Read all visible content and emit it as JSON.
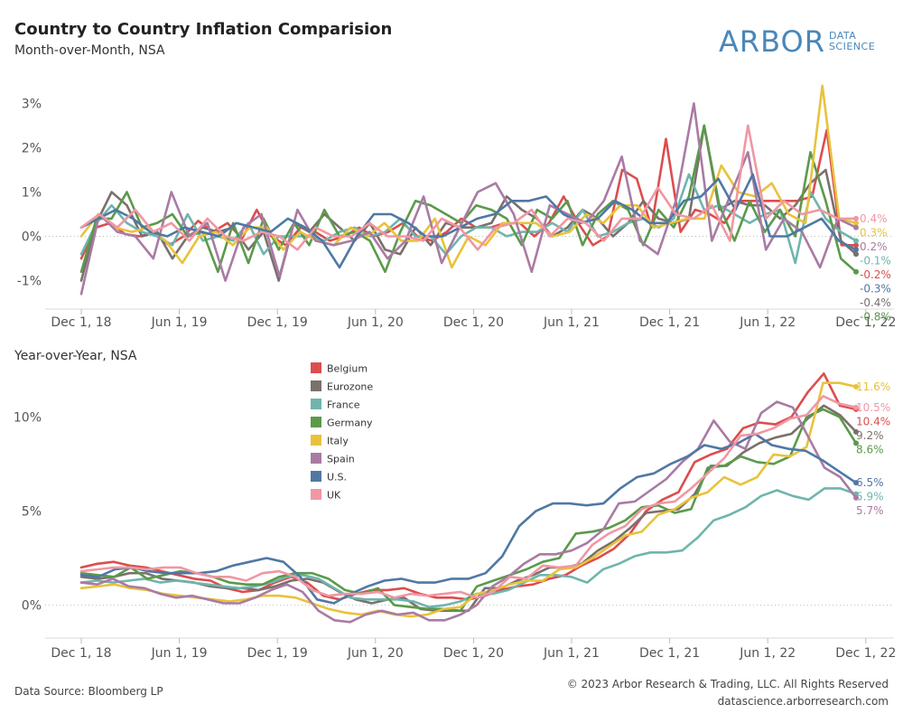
{
  "header": {
    "title": "Country to Country Inflation Comparision",
    "subtitle": "Month-over-Month, NSA"
  },
  "logo": {
    "main": "ARBOR",
    "line1": "DATA",
    "line2": "SCIENCE",
    "color": "#4a87b8"
  },
  "footer": {
    "source": "Data Source: Bloomberg LP",
    "copyright": "© 2023 Arbor Research & Trading, LLC. All Rights Reserved",
    "website": "datascience.arborresearch.com"
  },
  "chart_data": [
    {
      "type": "line",
      "title": "",
      "subtitle": "Month-over-Month, NSA",
      "x_ticks": [
        "Dec 1, 18",
        "Jun 1, 19",
        "Dec 1, 19",
        "Jun 1, 20",
        "Dec 1, 20",
        "Jun 1, 21",
        "Dec 1, 21",
        "Jun 1, 22",
        "Dec 1, 22"
      ],
      "x_start": "2018-12",
      "y_ticks": [
        "-1%",
        "0%",
        "1%",
        "2%",
        "3%"
      ],
      "y_tick_values": [
        -1,
        0,
        1,
        2,
        3
      ],
      "ylim": [
        -1.6,
        3.6
      ],
      "gridlines": false,
      "zero_line": "dotted",
      "series": [
        {
          "name": "Belgium",
          "color": "#dc4d4e",
          "end_label": "-0.2%",
          "values": [
            -0.5,
            0.2,
            0.3,
            0.05,
            0.0,
            0.1,
            -0.2,
            0.0,
            0.35,
            0.1,
            0.3,
            -0.05,
            0.6,
            0.0,
            -0.2,
            0.2,
            0.1,
            -0.1,
            0.0,
            0.2,
            0.0,
            0.1,
            0.3,
            0.0,
            -0.1,
            0.1,
            0.4,
            0.2,
            0.2,
            0.3,
            0.3,
            0.0,
            0.3,
            0.9,
            0.3,
            -0.2,
            0.0,
            1.5,
            1.3,
            0.2,
            2.2,
            0.1,
            0.6,
            0.5,
            0.3,
            0.8,
            0.8,
            0.8,
            0.8,
            0.8,
            0.9,
            2.4,
            -0.2,
            -0.2
          ]
        },
        {
          "name": "Eurozone",
          "color": "#7a706c",
          "end_label": "-0.4%",
          "values": [
            -1.0,
            0.3,
            1.0,
            0.7,
            0.0,
            0.1,
            -0.5,
            0.0,
            0.2,
            0.1,
            0.2,
            -0.3,
            0.1,
            -1.0,
            0.3,
            0.1,
            0.5,
            0.2,
            -0.1,
            0.3,
            -0.3,
            -0.4,
            0.2,
            -0.2,
            0.3,
            0.2,
            0.2,
            0.3,
            0.9,
            0.6,
            0.4,
            0.0,
            0.2,
            0.6,
            0.4,
            0.0,
            0.3,
            0.8,
            0.4,
            0.3,
            0.4,
            2.5,
            0.6,
            0.8,
            0.7,
            0.7,
            0.4,
            0.7,
            1.2,
            1.5,
            -0.1,
            -0.4
          ]
        },
        {
          "name": "France",
          "color": "#6fb5ad",
          "end_label": "-0.1%",
          "values": [
            -0.4,
            0.3,
            0.7,
            0.3,
            0.1,
            0.0,
            -0.2,
            0.5,
            -0.1,
            0.0,
            -0.1,
            0.3,
            -0.4,
            0.0,
            0.0,
            0.0,
            -0.1,
            0.1,
            0.2,
            0.0,
            0.1,
            0.4,
            0.0,
            0.0,
            -0.4,
            0.0,
            0.2,
            0.2,
            0.0,
            0.1,
            0.1,
            0.3,
            0.1,
            0.6,
            0.0,
            0.1,
            0.3,
            0.4,
            0.2,
            0.4,
            1.4,
            0.6,
            0.7,
            0.5,
            0.3,
            0.5,
            0.6,
            -0.6,
            1.0,
            0.4,
            0.1,
            -0.1
          ]
        },
        {
          "name": "Germany",
          "color": "#5a9a4a",
          "end_label": "-0.8%",
          "values": [
            -0.8,
            0.4,
            0.4,
            1.0,
            0.2,
            0.3,
            0.5,
            0.0,
            0.1,
            -0.8,
            0.3,
            -0.6,
            0.4,
            -0.3,
            0.3,
            -0.2,
            0.6,
            0.0,
            0.1,
            -0.1,
            -0.8,
            0.1,
            0.8,
            0.7,
            0.5,
            0.3,
            0.7,
            0.6,
            0.4,
            -0.2,
            0.6,
            0.4,
            0.8,
            -0.2,
            0.5,
            0.8,
            0.6,
            -0.2,
            0.6,
            0.2,
            0.9,
            2.5,
            0.7,
            -0.1,
            0.8,
            0.1,
            0.6,
            0.0,
            1.9,
            0.8,
            -0.5,
            -0.8
          ]
        },
        {
          "name": "Italy",
          "color": "#e9c23c",
          "end_label": "0.3%",
          "values": [
            0.0,
            0.5,
            0.2,
            0.1,
            0.2,
            -0.1,
            -0.6,
            0.0,
            0.1,
            -0.2,
            0.2,
            0.2,
            -0.3,
            0.1,
            -0.1,
            -0.2,
            0.2,
            0.0,
            0.3,
            -0.1,
            -0.1,
            0.4,
            -0.7,
            0.0,
            -0.2,
            0.3,
            0.3,
            0.3,
            0.0,
            0.1,
            0.5,
            0.3,
            0.7,
            0.7,
            0.2,
            0.3,
            0.4,
            0.4,
            1.6,
            1.0,
            0.9,
            1.2,
            0.5,
            0.3,
            3.4,
            0.4,
            0.3
          ]
        },
        {
          "name": "Spain",
          "color": "#a97ba3",
          "end_label": "0.2%",
          "values": [
            -1.3,
            0.5,
            0.1,
            0.0,
            -0.5,
            1.0,
            0.0,
            0.3,
            -1.0,
            0.2,
            0.5,
            -0.9,
            0.6,
            -0.1,
            -0.2,
            -0.1,
            0.1,
            -0.5,
            -0.1,
            0.9,
            -0.6,
            0.2,
            1.0,
            1.2,
            0.5,
            -0.8,
            0.7,
            0.5,
            0.3,
            0.8,
            1.8,
            -0.1,
            -0.4,
            0.8,
            3.0,
            -0.1,
            0.9,
            1.9,
            -0.3,
            0.4,
            0.1,
            -0.7,
            0.4,
            0.2
          ]
        },
        {
          "name": "U.S.",
          "color": "#4f78a4",
          "end_label": "-0.3%",
          "values": [
            0.2,
            0.4,
            0.6,
            0.4,
            0.1,
            0.0,
            0.2,
            0.1,
            0.0,
            0.3,
            0.2,
            0.1,
            0.4,
            0.2,
            -0.1,
            -0.7,
            0.0,
            0.5,
            0.5,
            0.3,
            0.0,
            0.0,
            0.2,
            0.4,
            0.5,
            0.8,
            0.8,
            0.9,
            0.5,
            0.3,
            0.4,
            0.8,
            0.6,
            0.3,
            0.3,
            0.8,
            0.9,
            1.3,
            0.6,
            1.4,
            0.0,
            0.0,
            0.2,
            0.4,
            -0.1,
            -0.3
          ]
        },
        {
          "name": "UK",
          "color": "#f097a3",
          "end_label": "0.4%",
          "values": [
            0.2,
            0.5,
            0.2,
            0.6,
            0.1,
            0.3,
            -0.1,
            0.4,
            0.0,
            -0.1,
            0.1,
            0.0,
            -0.3,
            0.2,
            0.0,
            0.0,
            0.3,
            0.0,
            0.0,
            -0.1,
            0.4,
            0.2,
            -0.3,
            0.2,
            0.3,
            0.6,
            0.0,
            0.4,
            0.3,
            -0.1,
            0.4,
            0.4,
            1.1,
            0.5,
            0.4,
            0.7,
            -0.1,
            2.5,
            0.4,
            0.8,
            0.5,
            0.6,
            0.4,
            0.4
          ]
        }
      ]
    },
    {
      "type": "line",
      "title": "",
      "subtitle": "Year-over-Year, NSA",
      "x_ticks": [
        "Dec 1, 18",
        "Jun 1, 19",
        "Dec 1, 19",
        "Jun 1, 20",
        "Dec 1, 20",
        "Jun 1, 21",
        "Dec 1, 21",
        "Jun 1, 22",
        "Dec 1, 22"
      ],
      "x_start": "2018-12",
      "y_ticks": [
        "0%",
        "5%",
        "10%"
      ],
      "y_tick_values": [
        0,
        5,
        10
      ],
      "ylim": [
        -1.7,
        12.7
      ],
      "gridlines": false,
      "zero_line": "dotted",
      "legend": {
        "placement": "top-center",
        "entries": [
          "Belgium",
          "Eurozone",
          "France",
          "Germany",
          "Italy",
          "Spain",
          "U.S.",
          "UK"
        ]
      },
      "series": [
        {
          "name": "Belgium",
          "color": "#dc4d4e",
          "end_label": "10.4%",
          "values": [
            2.0,
            2.2,
            2.3,
            2.1,
            2.0,
            1.8,
            1.6,
            1.4,
            1.3,
            0.9,
            0.7,
            0.8,
            1.2,
            1.5,
            1.2,
            0.5,
            0.3,
            0.6,
            0.8,
            0.8,
            0.9,
            0.6,
            0.4,
            0.4,
            0.3,
            0.5,
            0.8,
            1.0,
            1.1,
            1.4,
            1.6,
            2.1,
            2.5,
            3.0,
            3.8,
            5.0,
            5.6,
            6.0,
            7.6,
            8.0,
            8.3,
            9.4,
            9.7,
            9.6,
            10.0,
            11.3,
            12.3,
            10.6,
            10.4
          ]
        },
        {
          "name": "Eurozone",
          "color": "#7a706c",
          "end_label": "9.2%",
          "values": [
            1.5,
            1.4,
            1.5,
            1.7,
            1.7,
            1.4,
            1.3,
            1.2,
            1.0,
            0.9,
            0.9,
            0.8,
            1.0,
            1.3,
            1.4,
            1.2,
            0.7,
            0.3,
            0.1,
            0.3,
            0.4,
            -0.2,
            -0.3,
            -0.3,
            -0.3,
            0.9,
            0.9,
            1.3,
            1.6,
            2.0,
            2.0,
            2.2,
            2.9,
            3.4,
            4.1,
            4.9,
            5.0,
            5.1,
            5.9,
            7.4,
            7.4,
            8.1,
            8.6,
            8.9,
            9.1,
            9.9,
            10.6,
            10.1,
            9.2
          ]
        },
        {
          "name": "France",
          "color": "#6fb5ad",
          "end_label": "5.9%",
          "values": [
            1.2,
            1.3,
            1.2,
            1.3,
            1.4,
            1.2,
            1.3,
            1.2,
            1.1,
            1.0,
            0.9,
            1.0,
            1.2,
            1.5,
            1.6,
            1.4,
            0.9,
            0.4,
            0.3,
            0.3,
            0.3,
            0.2,
            -0.1,
            0.0,
            0.2,
            0.6,
            0.6,
            0.8,
            1.2,
            1.6,
            1.6,
            1.5,
            1.2,
            1.9,
            2.2,
            2.6,
            2.8,
            2.8,
            2.9,
            3.6,
            4.5,
            4.8,
            5.2,
            5.8,
            6.1,
            5.8,
            5.6,
            6.2,
            6.2,
            5.9
          ]
        },
        {
          "name": "Germany",
          "color": "#5a9a4a",
          "end_label": "8.6%",
          "values": [
            1.7,
            1.6,
            1.5,
            2.0,
            1.4,
            1.6,
            1.8,
            1.7,
            1.5,
            1.2,
            1.1,
            1.1,
            1.5,
            1.7,
            1.7,
            1.4,
            0.8,
            0.6,
            0.9,
            0.0,
            -0.1,
            -0.2,
            -0.2,
            -0.3,
            1.0,
            1.3,
            1.6,
            1.9,
            2.3,
            2.5,
            3.8,
            3.9,
            4.1,
            4.5,
            5.2,
            5.3,
            4.9,
            5.1,
            7.3,
            7.4,
            7.9,
            7.6,
            7.5,
            7.9,
            10.0,
            10.4,
            10.0,
            8.6
          ]
        },
        {
          "name": "Italy",
          "color": "#e9c23c",
          "end_label": "11.6%",
          "values": [
            0.9,
            1.0,
            1.1,
            0.9,
            0.8,
            0.6,
            0.5,
            0.4,
            0.3,
            0.2,
            0.3,
            0.5,
            0.5,
            0.4,
            0.1,
            -0.2,
            -0.4,
            -0.5,
            -0.3,
            -0.5,
            -0.6,
            -0.5,
            -0.2,
            -0.1,
            0.6,
            0.8,
            1.1,
            1.3,
            1.3,
            1.9,
            2.0,
            2.5,
            3.1,
            3.7,
            3.9,
            4.8,
            5.1,
            5.7,
            6.0,
            6.8,
            6.4,
            6.8,
            8.0,
            7.9,
            8.4,
            11.8,
            11.8,
            11.6
          ]
        },
        {
          "name": "Spain",
          "color": "#a97ba3",
          "end_label": "5.7%",
          "values": [
            1.2,
            1.1,
            1.4,
            1.0,
            0.9,
            0.6,
            0.4,
            0.5,
            0.3,
            0.1,
            0.1,
            0.4,
            0.8,
            1.1,
            0.7,
            -0.3,
            -0.8,
            -0.9,
            -0.5,
            -0.3,
            -0.5,
            -0.4,
            -0.8,
            -0.8,
            -0.5,
            0.0,
            1.0,
            1.5,
            2.2,
            2.7,
            2.7,
            2.9,
            3.3,
            4.0,
            5.4,
            5.5,
            6.1,
            6.7,
            7.6,
            8.3,
            9.8,
            8.7,
            8.3,
            10.2,
            10.8,
            10.5,
            8.9,
            7.3,
            6.8,
            5.7
          ]
        },
        {
          "name": "U.S.",
          "color": "#4f78a4",
          "end_label": "6.5%",
          "values": [
            1.6,
            1.5,
            1.9,
            2.0,
            1.8,
            1.7,
            1.7,
            1.7,
            1.8,
            2.1,
            2.3,
            2.5,
            2.3,
            1.5,
            0.3,
            0.1,
            0.6,
            1.0,
            1.3,
            1.4,
            1.2,
            1.2,
            1.4,
            1.4,
            1.7,
            2.6,
            4.2,
            5.0,
            5.4,
            5.4,
            5.3,
            5.4,
            6.2,
            6.8,
            7.0,
            7.5,
            7.9,
            8.5,
            8.3,
            8.6,
            9.1,
            8.5,
            8.3,
            8.2,
            7.7,
            7.1,
            6.5
          ]
        },
        {
          "name": "UK",
          "color": "#f097a3",
          "end_label": "10.5%",
          "values": [
            1.8,
            1.9,
            2.0,
            2.0,
            1.9,
            2.0,
            2.0,
            1.7,
            1.5,
            1.5,
            1.3,
            1.7,
            1.8,
            1.5,
            0.8,
            0.5,
            0.6,
            0.6,
            0.7,
            0.4,
            0.6,
            0.5,
            0.6,
            0.7,
            0.4,
            0.7,
            1.5,
            1.4,
            2.1,
            2.0,
            2.1,
            3.2,
            3.8,
            4.2,
            5.1,
            5.4,
            5.5,
            6.2,
            7.0,
            7.8,
            9.0,
            9.1,
            9.4,
            9.9,
            10.1,
            11.1,
            10.7,
            10.5
          ]
        }
      ]
    }
  ]
}
